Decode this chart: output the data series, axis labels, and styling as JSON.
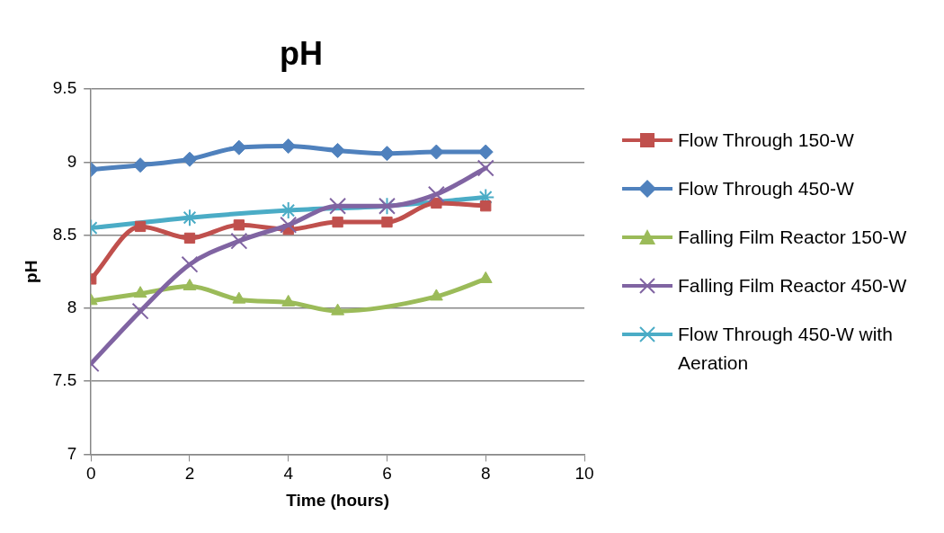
{
  "chart_data": {
    "type": "line",
    "title": "pH",
    "xlabel": "Time (hours)",
    "ylabel": "pH",
    "x": [
      0,
      1,
      2,
      3,
      4,
      5,
      6,
      7,
      8
    ],
    "xlim": [
      0,
      10
    ],
    "xticks": [
      0,
      2,
      4,
      6,
      8,
      10
    ],
    "ylim": [
      7,
      9.5
    ],
    "yticks": [
      7,
      7.5,
      8,
      8.5,
      9,
      9.5
    ],
    "grid": "y",
    "legend": "right",
    "series": [
      {
        "name": "Flow Through 150-W",
        "color": "#c0504d",
        "marker": "square",
        "values": [
          8.2,
          8.56,
          8.48,
          8.57,
          8.54,
          8.59,
          8.59,
          8.72,
          8.7
        ]
      },
      {
        "name": "Flow Through 450-W",
        "color": "#4f81bd",
        "marker": "diamond",
        "values": [
          8.95,
          8.98,
          9.02,
          9.1,
          9.11,
          9.08,
          9.06,
          9.07,
          9.07
        ]
      },
      {
        "name": "Falling Film Reactor 150-W",
        "color": "#9bbb59",
        "marker": "triangle",
        "values": [
          8.05,
          8.1,
          8.15,
          8.06,
          8.04,
          7.98,
          null,
          8.08,
          8.2
        ]
      },
      {
        "name": "Falling Film Reactor 450-W",
        "color": "#8064a2",
        "marker": "cross",
        "values": [
          7.62,
          7.98,
          8.3,
          8.46,
          8.57,
          8.7,
          8.7,
          8.78,
          8.96
        ]
      },
      {
        "name": "Flow Through 450-W with Aeration",
        "color": "#4bacc6",
        "marker": "cross",
        "values": [
          8.55,
          null,
          8.62,
          null,
          8.67,
          null,
          8.7,
          null,
          8.76
        ]
      }
    ]
  }
}
